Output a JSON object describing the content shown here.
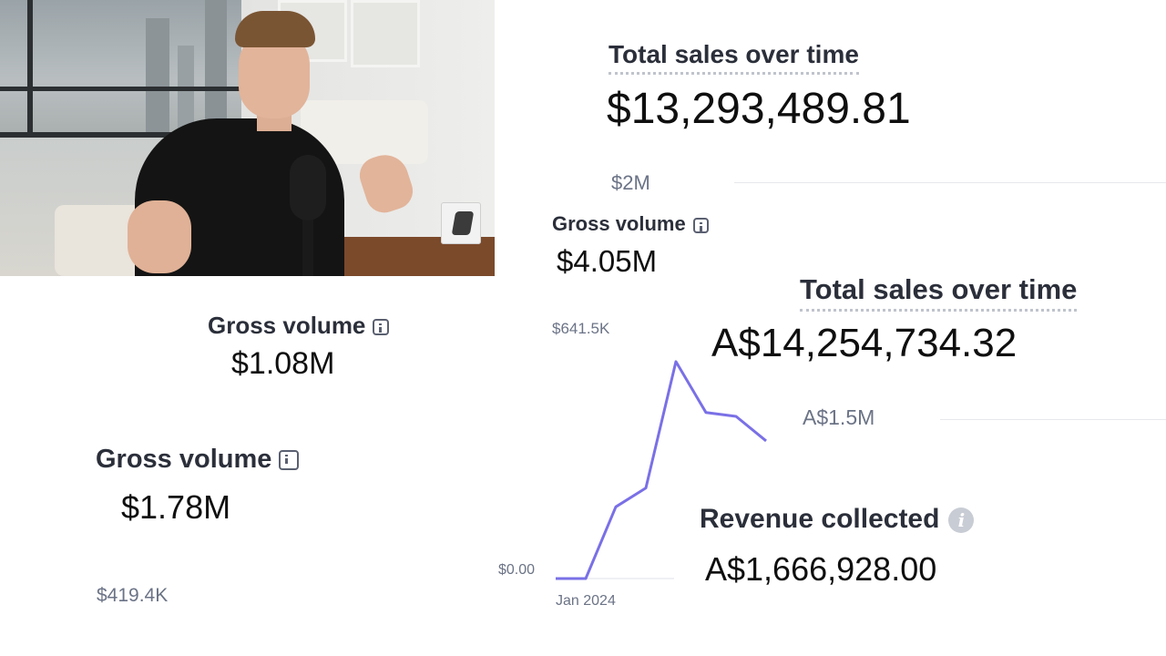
{
  "cards": {
    "gross_small_top": {
      "label": "Gross volume",
      "value": "$1.08M"
    },
    "gross_bottom_left": {
      "label": "Gross volume",
      "value": "$1.78M",
      "axis_label": "$419.4K"
    },
    "gross_center": {
      "label": "Gross volume",
      "value": "$4.05M",
      "axis_top": "$641.5K"
    },
    "total_sales_usd": {
      "label": "Total sales over time",
      "value": "$13,293,489.81",
      "axis_label": "$2M"
    },
    "total_sales_aud": {
      "label": "Total sales over time",
      "value": "A$14,254,734.32",
      "axis_label": "A$1.5M"
    },
    "revenue_collected": {
      "label": "Revenue collected",
      "value": "A$1,666,928.00"
    }
  },
  "icons": {
    "info_square": "info-icon",
    "info_circle": "i"
  },
  "chart_data": {
    "type": "line",
    "x": [
      "Jan 2024",
      "",
      "",
      "",
      "",
      "",
      "",
      ""
    ],
    "series": [
      {
        "values": [
          0,
          0,
          380000,
          480000,
          1150000,
          880000,
          860000,
          730000
        ],
        "color": "#7a70e6"
      }
    ],
    "ylim": [
      0,
      1280000
    ],
    "y_ticks": [
      "$0.00"
    ],
    "x_tick_label": "Jan 2024",
    "grid": false
  },
  "colors": {
    "line": "#7a70e6",
    "axis_text": "#6b7386",
    "label": "#2b2f3a"
  }
}
